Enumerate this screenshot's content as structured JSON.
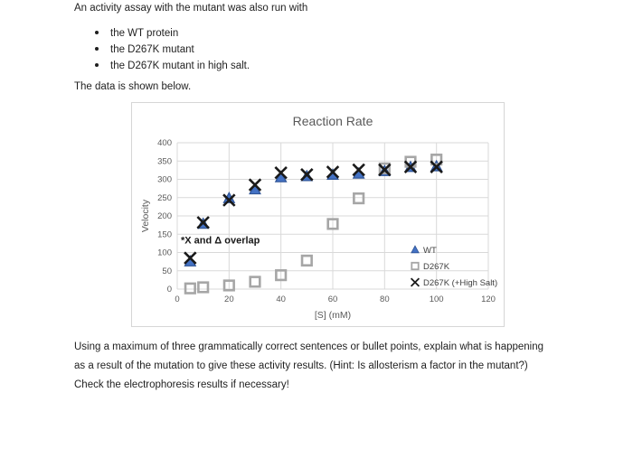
{
  "page": {
    "intro": "An activity assay with the mutant was also run with",
    "bullets": [
      "the WT protein",
      "the D267K mutant",
      "the D267K mutant in high salt."
    ],
    "data_note": "The data is shown below.",
    "question_lines": [
      "Using a maximum of three grammatically correct sentences or bullet points, explain what is happening",
      "as a result of the mutation to give these activity results. (Hint: Is allosterism a factor in the mutant?)",
      "Check the electrophoresis results if necessary!"
    ]
  },
  "chart_data": {
    "type": "scatter",
    "title": "Reaction Rate",
    "xlabel": "[S] (mM)",
    "ylabel": "Velocity",
    "xlim": [
      0,
      120
    ],
    "ylim": [
      0,
      400
    ],
    "x_ticks": [
      0,
      20,
      40,
      60,
      80,
      100,
      120
    ],
    "y_ticks": [
      0,
      50,
      100,
      150,
      200,
      250,
      300,
      350,
      400
    ],
    "grid": true,
    "legend_position": "inside-bottom-right",
    "annotation": "*X and Δ overlap",
    "x": [
      5,
      10,
      20,
      30,
      40,
      50,
      60,
      70,
      80,
      90,
      100
    ],
    "series": [
      {
        "name": "WT",
        "marker": "triangle",
        "color": "#4472c4",
        "values": [
          75,
          178,
          248,
          272,
          305,
          308,
          312,
          315,
          322,
          333,
          335
        ]
      },
      {
        "name": "D267K",
        "marker": "square",
        "color": "#a6a6a6",
        "values": [
          2,
          5,
          10,
          20,
          38,
          78,
          178,
          248,
          330,
          348,
          354
        ]
      },
      {
        "name": "D267K (+High Salt)",
        "marker": "x",
        "color": "#1a1a1a",
        "values": [
          85,
          182,
          243,
          285,
          318,
          313,
          320,
          326,
          326,
          334,
          334
        ]
      }
    ],
    "colors": {
      "grid": "#d9d9d9",
      "axis_text": "#595959",
      "triangle_edge": "#2f5496",
      "legend_text": "#404040"
    }
  }
}
